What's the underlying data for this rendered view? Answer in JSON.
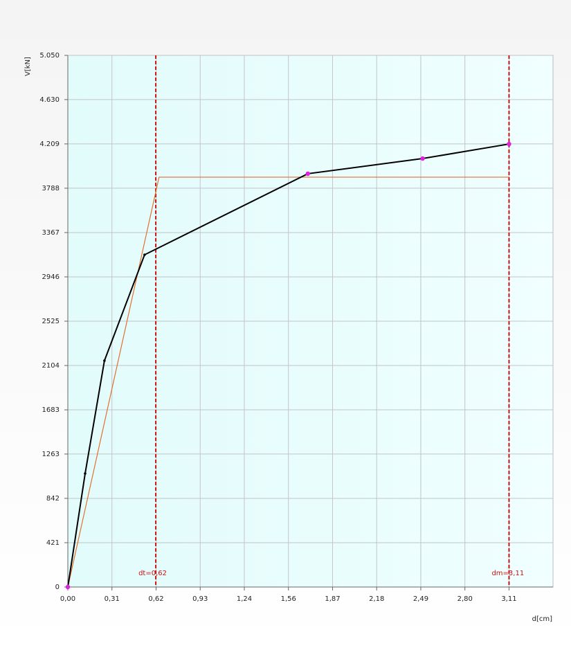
{
  "chart_data": {
    "type": "line",
    "x_label": "d[cm]",
    "y_label": "V[kN]",
    "xlim": [
      0,
      3.42
    ],
    "ylim": [
      0,
      5050
    ],
    "xticks": [
      {
        "value": 0,
        "label": "0,00"
      },
      {
        "value": 0.311,
        "label": "0,31"
      },
      {
        "value": 0.622,
        "label": "0,62"
      },
      {
        "value": 0.933,
        "label": "0,93"
      },
      {
        "value": 1.244,
        "label": "1,24"
      },
      {
        "value": 1.555,
        "label": "1,56"
      },
      {
        "value": 1.866,
        "label": "1,87"
      },
      {
        "value": 2.177,
        "label": "2,18"
      },
      {
        "value": 2.488,
        "label": "2,49"
      },
      {
        "value": 2.799,
        "label": "2,80"
      },
      {
        "value": 3.11,
        "label": "3,11"
      }
    ],
    "yticks": [
      0,
      421,
      842,
      1263,
      1683,
      2104,
      2525,
      2946,
      3367,
      3788,
      {
        "value": 4209,
        "label": "4.209"
      },
      {
        "value": 4630,
        "label": "4.630"
      },
      {
        "value": 5050,
        "label": "5.050"
      }
    ],
    "grid": true,
    "series": [
      {
        "color": "#000000",
        "x": [
          0,
          0.122,
          0.258,
          0.541,
          1.692,
          2.501,
          3.11
        ],
        "values": [
          0,
          1078,
          2150,
          3156,
          3926,
          4070,
          4208
        ],
        "marker_colors": [
          "#e020e0",
          "#000000",
          "#000000",
          "#000000",
          "#e020e0",
          "#e020e0",
          "#e020e0"
        ]
      },
      {
        "color": "#e07030",
        "x": [
          0,
          0.643,
          3.11
        ],
        "values": [
          0,
          3893,
          3893
        ]
      }
    ],
    "vlines": [
      {
        "value": 0.62,
        "label": "dt=0,62",
        "color": "#cc1111"
      },
      {
        "value": 3.11,
        "label": "dm=3,11",
        "color": "#cc1111"
      }
    ]
  }
}
